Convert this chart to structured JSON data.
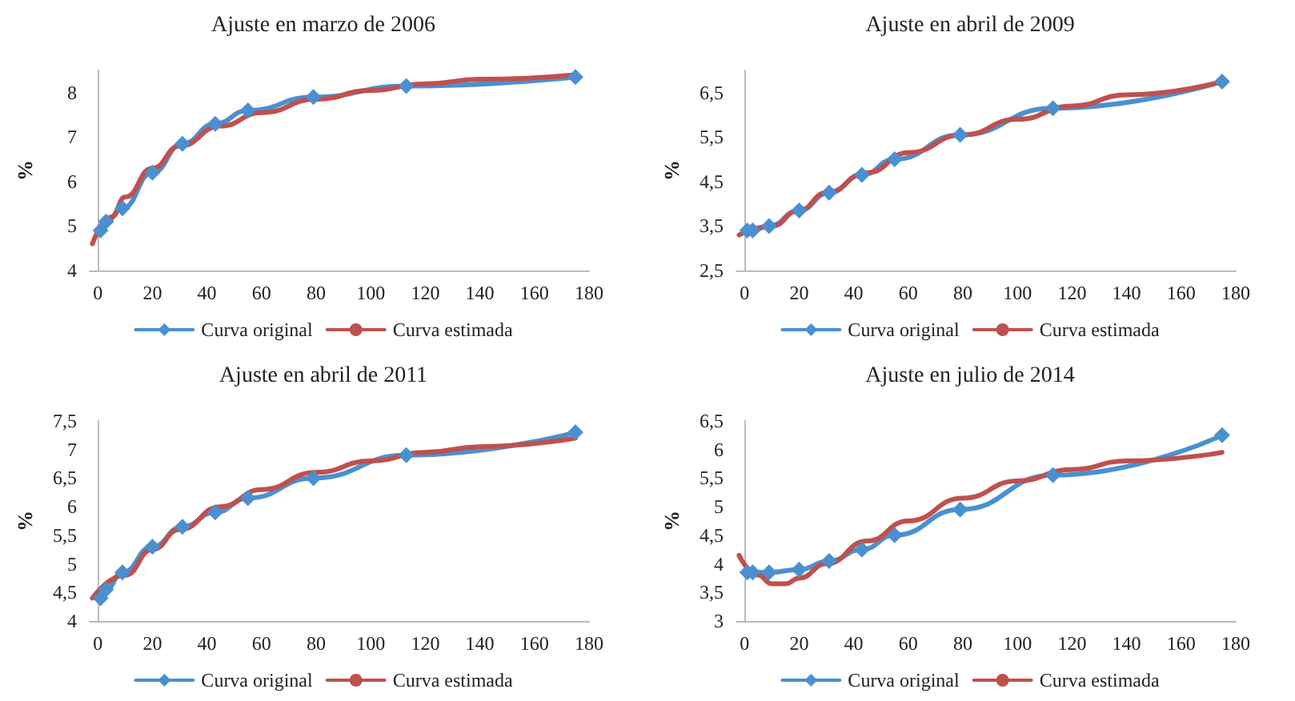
{
  "chart_data": [
    {
      "type": "line",
      "title": "Ajuste en marzo de 2006",
      "ylabel": "%",
      "xlim": [
        -3,
        180
      ],
      "xticks": [
        0,
        20,
        40,
        60,
        80,
        100,
        120,
        140,
        160,
        180
      ],
      "ylim": [
        4,
        8.5
      ],
      "yticks": [
        4,
        5,
        6,
        7,
        8
      ],
      "grid": false,
      "legend": "bottom",
      "series": [
        {
          "name": "Curva original",
          "color": "#4a90d0",
          "marker": "diamond",
          "x": [
            1,
            3,
            9,
            20,
            31,
            43,
            55,
            79,
            113,
            175
          ],
          "values": [
            4.9,
            5.1,
            5.4,
            6.2,
            6.85,
            7.3,
            7.6,
            7.9,
            8.15,
            8.35
          ]
        },
        {
          "name": "Curva estimada",
          "color": "#c0504d",
          "marker": "none",
          "x": [
            -2,
            5,
            10,
            20,
            30,
            45,
            60,
            80,
            100,
            120,
            140,
            175
          ],
          "values": [
            4.6,
            5.2,
            5.65,
            6.3,
            6.8,
            7.25,
            7.55,
            7.85,
            8.05,
            8.2,
            8.3,
            8.4
          ]
        }
      ]
    },
    {
      "type": "line",
      "title": "Ajuste en abril de 2009",
      "ylabel": "%",
      "xlim": [
        -3,
        180
      ],
      "xticks": [
        0,
        20,
        40,
        60,
        80,
        100,
        120,
        140,
        160,
        180
      ],
      "ylim": [
        2.5,
        7
      ],
      "yticks": [
        {
          "value": 2.5,
          "label": "2,5"
        },
        {
          "value": 3.5,
          "label": "3,5"
        },
        {
          "value": 4.5,
          "label": "4,5"
        },
        {
          "value": 5.5,
          "label": "5,5"
        },
        {
          "value": 6.5,
          "label": "6,5"
        }
      ],
      "grid": false,
      "legend": "bottom",
      "series": [
        {
          "name": "Curva original",
          "color": "#4a90d0",
          "marker": "diamond",
          "x": [
            1,
            3,
            9,
            20,
            31,
            43,
            55,
            79,
            113,
            175
          ],
          "values": [
            3.4,
            3.4,
            3.5,
            3.85,
            4.25,
            4.65,
            5.0,
            5.55,
            6.15,
            6.75
          ]
        },
        {
          "name": "Curva estimada",
          "color": "#c0504d",
          "marker": "none",
          "x": [
            -2,
            10,
            20,
            30,
            45,
            60,
            80,
            100,
            120,
            140,
            175
          ],
          "values": [
            3.3,
            3.5,
            3.85,
            4.25,
            4.7,
            5.15,
            5.55,
            5.9,
            6.2,
            6.45,
            6.75
          ]
        }
      ]
    },
    {
      "type": "line",
      "title": "Ajuste en abril de 2011",
      "ylabel": "%",
      "xlim": [
        -3,
        180
      ],
      "xticks": [
        0,
        20,
        40,
        60,
        80,
        100,
        120,
        140,
        160,
        180
      ],
      "ylim": [
        4,
        7.5
      ],
      "yticks": [
        4,
        {
          "value": 4.5,
          "label": "4,5"
        },
        5,
        {
          "value": 5.5,
          "label": "5,5"
        },
        6,
        {
          "value": 6.5,
          "label": "6,5"
        },
        7,
        {
          "value": 7.5,
          "label": "7,5"
        }
      ],
      "grid": false,
      "legend": "bottom",
      "series": [
        {
          "name": "Curva original",
          "color": "#4a90d0",
          "marker": "diamond",
          "x": [
            1,
            3,
            9,
            20,
            31,
            43,
            55,
            79,
            113,
            175
          ],
          "values": [
            4.4,
            4.55,
            4.85,
            5.3,
            5.65,
            5.9,
            6.15,
            6.5,
            6.9,
            7.3
          ]
        },
        {
          "name": "Curva estimada",
          "color": "#c0504d",
          "marker": "none",
          "x": [
            -2,
            10,
            20,
            30,
            45,
            60,
            80,
            100,
            120,
            140,
            175
          ],
          "values": [
            4.4,
            4.8,
            5.25,
            5.6,
            6.0,
            6.3,
            6.6,
            6.8,
            6.95,
            7.05,
            7.2
          ]
        }
      ]
    },
    {
      "type": "line",
      "title": "Ajuste en julio de 2014",
      "ylabel": "%",
      "xlim": [
        -3,
        180
      ],
      "xticks": [
        0,
        20,
        40,
        60,
        80,
        100,
        120,
        140,
        160,
        180
      ],
      "ylim": [
        3,
        6.5
      ],
      "yticks": [
        3,
        {
          "value": 3.5,
          "label": "3,5"
        },
        4,
        {
          "value": 4.5,
          "label": "4,5"
        },
        5,
        {
          "value": 5.5,
          "label": "5,5"
        },
        6,
        {
          "value": 6.5,
          "label": "6,5"
        }
      ],
      "grid": false,
      "legend": "bottom",
      "series": [
        {
          "name": "Curva original",
          "color": "#4a90d0",
          "marker": "diamond",
          "x": [
            1,
            3,
            9,
            20,
            31,
            43,
            55,
            79,
            113,
            175
          ],
          "values": [
            3.85,
            3.85,
            3.85,
            3.9,
            4.05,
            4.25,
            4.5,
            4.95,
            5.55,
            6.25
          ]
        },
        {
          "name": "Curva estimada",
          "color": "#c0504d",
          "marker": "none",
          "x": [
            -2,
            5,
            10,
            15,
            20,
            30,
            45,
            60,
            80,
            100,
            120,
            140,
            175
          ],
          "values": [
            4.15,
            3.8,
            3.65,
            3.65,
            3.75,
            4.0,
            4.4,
            4.75,
            5.15,
            5.45,
            5.65,
            5.8,
            5.95
          ]
        }
      ]
    }
  ]
}
